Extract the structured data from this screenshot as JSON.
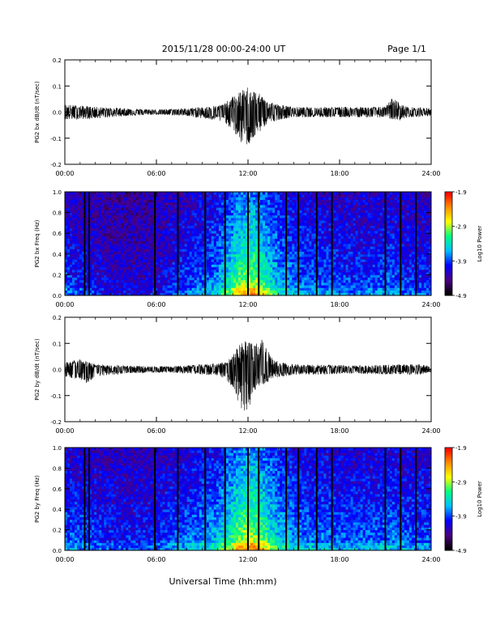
{
  "header": {
    "title": "2015/11/28  00:00-24:00 UT",
    "page": "Page 1/1"
  },
  "footer": {
    "xlabel": "Universal Time (hh:mm)"
  },
  "colors": {
    "trace": "#000000",
    "colormap": [
      "#000000",
      "#4b0082",
      "#0000ff",
      "#00bfff",
      "#00ff7f",
      "#ffff00",
      "#ff8c00",
      "#ff0000"
    ]
  },
  "chart_data": [
    {
      "type": "line",
      "ylabel": "PG2 bx dB/dt (nT/sec)",
      "xlim": [
        "00:00",
        "24:00"
      ],
      "xticks": [
        "00:00",
        "06:00",
        "12:00",
        "18:00",
        "24:00"
      ],
      "ylim": [
        -0.2,
        0.2
      ],
      "yticks": [
        "0.2",
        "0.1",
        "0.0",
        "-0.1",
        "-0.2"
      ],
      "envelope": {
        "hours": [
          0,
          2,
          4,
          6,
          8,
          9,
          10,
          10.5,
          11,
          11.5,
          12,
          12.5,
          13,
          13.5,
          14,
          15,
          16,
          17,
          18,
          21,
          21.5,
          22,
          22.5,
          24
        ],
        "upper": [
          0.03,
          0.02,
          0.015,
          0.01,
          0.015,
          0.02,
          0.025,
          0.035,
          0.06,
          0.08,
          0.1,
          0.08,
          0.06,
          0.04,
          0.03,
          0.02,
          0.018,
          0.02,
          0.02,
          0.02,
          0.06,
          0.03,
          0.02,
          0.015
        ],
        "lower": [
          -0.03,
          -0.025,
          -0.015,
          -0.01,
          -0.015,
          -0.025,
          -0.035,
          -0.04,
          -0.07,
          -0.12,
          -0.13,
          -0.1,
          -0.06,
          -0.04,
          -0.03,
          -0.02,
          -0.02,
          -0.02,
          -0.02,
          -0.02,
          -0.03,
          -0.03,
          -0.02,
          -0.015
        ]
      }
    },
    {
      "type": "heatmap",
      "ylabel": "PG2 bx Freq (Hz)",
      "xlim": [
        "00:00",
        "24:00"
      ],
      "xticks": [
        "00:00",
        "06:00",
        "12:00",
        "18:00",
        "24:00"
      ],
      "ylim": [
        0.0,
        1.0
      ],
      "yticks": [
        "1.0",
        "0.8",
        "0.6",
        "0.4",
        "0.2",
        "0.0"
      ],
      "colorbar": {
        "label": "Log10 Power",
        "ticks": [
          "-1.9",
          "-2.9",
          "-3.9",
          "-4.9"
        ],
        "range": [
          -4.9,
          -1.9
        ]
      },
      "gap_hours": [
        1.3,
        1.6,
        5.9,
        7.4,
        9.2,
        10.5,
        12.0,
        12.7,
        14.5,
        15.3,
        16.5,
        17.5,
        21.0,
        22.0,
        23.0
      ],
      "activity": {
        "hours": [
          0,
          1,
          3,
          5,
          6,
          7,
          8,
          9,
          10,
          11,
          11.5,
          12,
          12.5,
          13,
          13.5,
          14,
          15,
          16,
          17,
          18,
          20,
          21.5,
          22,
          24
        ],
        "level": [
          0.35,
          0.3,
          0.2,
          0.18,
          0.22,
          0.3,
          0.35,
          0.4,
          0.5,
          0.75,
          0.9,
          0.95,
          0.92,
          0.8,
          0.65,
          0.55,
          0.45,
          0.4,
          0.4,
          0.35,
          0.35,
          0.4,
          0.35,
          0.3
        ]
      }
    },
    {
      "type": "line",
      "ylabel": "PG2 by dB/dt (nT/sec)",
      "xlim": [
        "00:00",
        "24:00"
      ],
      "xticks": [
        "00:00",
        "06:00",
        "12:00",
        "18:00",
        "24:00"
      ],
      "ylim": [
        -0.2,
        0.2
      ],
      "yticks": [
        "0.2",
        "0.1",
        "0.0",
        "-0.1",
        "-0.2"
      ],
      "envelope": {
        "hours": [
          0,
          1,
          1.5,
          2,
          4,
          6,
          8,
          9,
          10,
          10.5,
          11,
          11.5,
          12,
          12.5,
          13,
          13.5,
          14,
          15,
          17,
          19,
          21,
          22,
          23,
          24
        ],
        "upper": [
          0.03,
          0.04,
          0.03,
          0.02,
          0.015,
          0.012,
          0.015,
          0.02,
          0.025,
          0.03,
          0.06,
          0.1,
          0.12,
          0.1,
          0.12,
          0.05,
          0.03,
          0.02,
          0.018,
          0.015,
          0.018,
          0.02,
          0.02,
          0.015
        ],
        "lower": [
          -0.03,
          -0.04,
          -0.06,
          -0.03,
          -0.015,
          -0.012,
          -0.015,
          -0.02,
          -0.025,
          -0.035,
          -0.07,
          -0.16,
          -0.17,
          -0.08,
          -0.06,
          -0.04,
          -0.03,
          -0.02,
          -0.02,
          -0.015,
          -0.02,
          -0.02,
          -0.02,
          -0.015
        ]
      }
    },
    {
      "type": "heatmap",
      "ylabel": "PG2 by Freq (Hz)",
      "xlim": [
        "00:00",
        "24:00"
      ],
      "xticks": [
        "00:00",
        "06:00",
        "12:00",
        "18:00",
        "24:00"
      ],
      "ylim": [
        0.0,
        1.0
      ],
      "yticks": [
        "1.0",
        "0.8",
        "0.6",
        "0.4",
        "0.2",
        "0.0"
      ],
      "colorbar": {
        "label": "Log10 Power",
        "ticks": [
          "-1.9",
          "-2.9",
          "-3.9",
          "-4.9"
        ],
        "range": [
          -4.9,
          -1.9
        ]
      },
      "gap_hours": [
        1.3,
        1.6,
        5.9,
        7.4,
        9.2,
        10.5,
        12.0,
        12.7,
        14.5,
        15.3,
        16.5,
        17.5,
        21.0,
        22.0,
        23.0
      ],
      "activity": {
        "hours": [
          0,
          1,
          3,
          5,
          6,
          7,
          8,
          9,
          10,
          11,
          11.5,
          12,
          12.5,
          13,
          13.5,
          14,
          15,
          16,
          17,
          18,
          20,
          21.5,
          22,
          24
        ],
        "level": [
          0.4,
          0.38,
          0.3,
          0.3,
          0.32,
          0.38,
          0.42,
          0.48,
          0.55,
          0.8,
          0.92,
          0.97,
          0.95,
          0.85,
          0.7,
          0.6,
          0.5,
          0.45,
          0.45,
          0.4,
          0.4,
          0.45,
          0.4,
          0.38
        ]
      }
    }
  ]
}
